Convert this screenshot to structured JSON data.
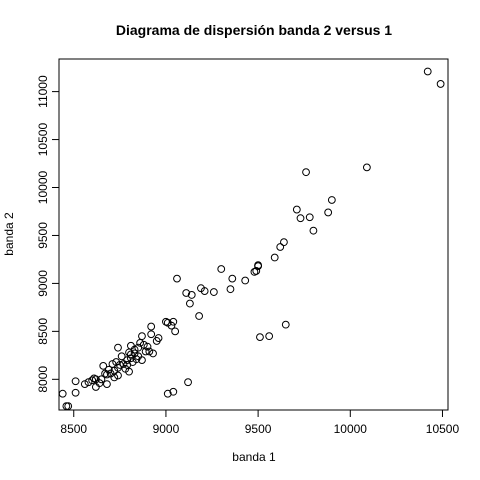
{
  "chart_data": {
    "type": "scatter",
    "title": "Diagrama de dispersión banda 2 versus 1",
    "xlabel": "banda 1",
    "ylabel": "banda 2",
    "xlim": [
      8420,
      10530
    ],
    "ylim": [
      7680,
      11340
    ],
    "xticks": [
      8500,
      9000,
      9500,
      10000,
      10500
    ],
    "yticks": [
      8000,
      8500,
      9000,
      9500,
      10000,
      10500,
      11000
    ],
    "grid": false,
    "legend": "none",
    "marker": "open-circle",
    "point_color": "#000000",
    "points": [
      [
        8440,
        7850
      ],
      [
        8460,
        7720
      ],
      [
        8470,
        7720
      ],
      [
        8510,
        7860
      ],
      [
        8510,
        7980
      ],
      [
        8560,
        7950
      ],
      [
        8580,
        7970
      ],
      [
        8600,
        7990
      ],
      [
        8610,
        8010
      ],
      [
        8620,
        7920
      ],
      [
        8620,
        8000
      ],
      [
        8640,
        7960
      ],
      [
        8650,
        8000
      ],
      [
        8660,
        8140
      ],
      [
        8670,
        8060
      ],
      [
        8680,
        8050
      ],
      [
        8680,
        7950
      ],
      [
        8690,
        8100
      ],
      [
        8700,
        8060
      ],
      [
        8710,
        8160
      ],
      [
        8720,
        8090
      ],
      [
        8720,
        8020
      ],
      [
        8730,
        8180
      ],
      [
        8740,
        8120
      ],
      [
        8740,
        8330
      ],
      [
        8740,
        8040
      ],
      [
        8750,
        8150
      ],
      [
        8760,
        8240
      ],
      [
        8770,
        8160
      ],
      [
        8780,
        8110
      ],
      [
        8790,
        8150
      ],
      [
        8790,
        8200
      ],
      [
        8800,
        8080
      ],
      [
        8800,
        8280
      ],
      [
        8810,
        8220
      ],
      [
        8810,
        8350
      ],
      [
        8810,
        8260
      ],
      [
        8820,
        8180
      ],
      [
        8830,
        8270
      ],
      [
        8830,
        8310
      ],
      [
        8840,
        8210
      ],
      [
        8850,
        8330
      ],
      [
        8850,
        8240
      ],
      [
        8860,
        8380
      ],
      [
        8870,
        8200
      ],
      [
        8870,
        8450
      ],
      [
        8880,
        8360
      ],
      [
        8890,
        8290
      ],
      [
        8900,
        8340
      ],
      [
        8910,
        8290
      ],
      [
        8920,
        8550
      ],
      [
        8920,
        8470
      ],
      [
        8930,
        8270
      ],
      [
        8950,
        8400
      ],
      [
        8960,
        8430
      ],
      [
        9000,
        8600
      ],
      [
        9010,
        8590
      ],
      [
        9010,
        7850
      ],
      [
        9030,
        8560
      ],
      [
        9040,
        8600
      ],
      [
        9040,
        7870
      ],
      [
        9050,
        8500
      ],
      [
        9060,
        9050
      ],
      [
        9110,
        8900
      ],
      [
        9120,
        7970
      ],
      [
        9130,
        8790
      ],
      [
        9140,
        8880
      ],
      [
        9180,
        8660
      ],
      [
        9190,
        8950
      ],
      [
        9210,
        8920
      ],
      [
        9260,
        8910
      ],
      [
        9300,
        9150
      ],
      [
        9350,
        8940
      ],
      [
        9360,
        9050
      ],
      [
        9430,
        9030
      ],
      [
        9480,
        9120
      ],
      [
        9490,
        9130
      ],
      [
        9500,
        9180
      ],
      [
        9500,
        9190
      ],
      [
        9510,
        8440
      ],
      [
        9560,
        8450
      ],
      [
        9590,
        9270
      ],
      [
        9620,
        9380
      ],
      [
        9640,
        9430
      ],
      [
        9650,
        8570
      ],
      [
        9710,
        9770
      ],
      [
        9730,
        9680
      ],
      [
        9760,
        10160
      ],
      [
        9780,
        9690
      ],
      [
        9800,
        9550
      ],
      [
        9880,
        9740
      ],
      [
        9900,
        9870
      ],
      [
        10090,
        10210
      ],
      [
        10420,
        11210
      ],
      [
        10490,
        11080
      ]
    ]
  }
}
